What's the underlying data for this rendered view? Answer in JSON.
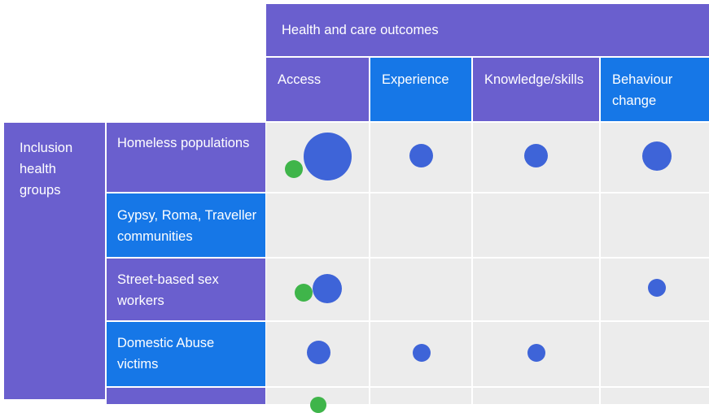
{
  "header": {
    "title": "Health and care outcomes",
    "columns": [
      {
        "label": "Access"
      },
      {
        "label": "Experience"
      },
      {
        "label": "Knowledge/skills"
      },
      {
        "label": "Behaviour change"
      }
    ]
  },
  "group_label": "Inclusion health groups",
  "rows": [
    {
      "label": "Homeless populations"
    },
    {
      "label": "Gypsy, Roma, Traveller communities"
    },
    {
      "label": "Street-based sex workers"
    },
    {
      "label": "Domestic Abuse victims"
    },
    {
      "label": ""
    }
  ],
  "colors": {
    "purple": "#6a5fce",
    "blue": "#1677e7",
    "grid": "#ececec",
    "bubble_primary": "#3e64d8",
    "bubble_secondary": "#3fb54a"
  }
}
